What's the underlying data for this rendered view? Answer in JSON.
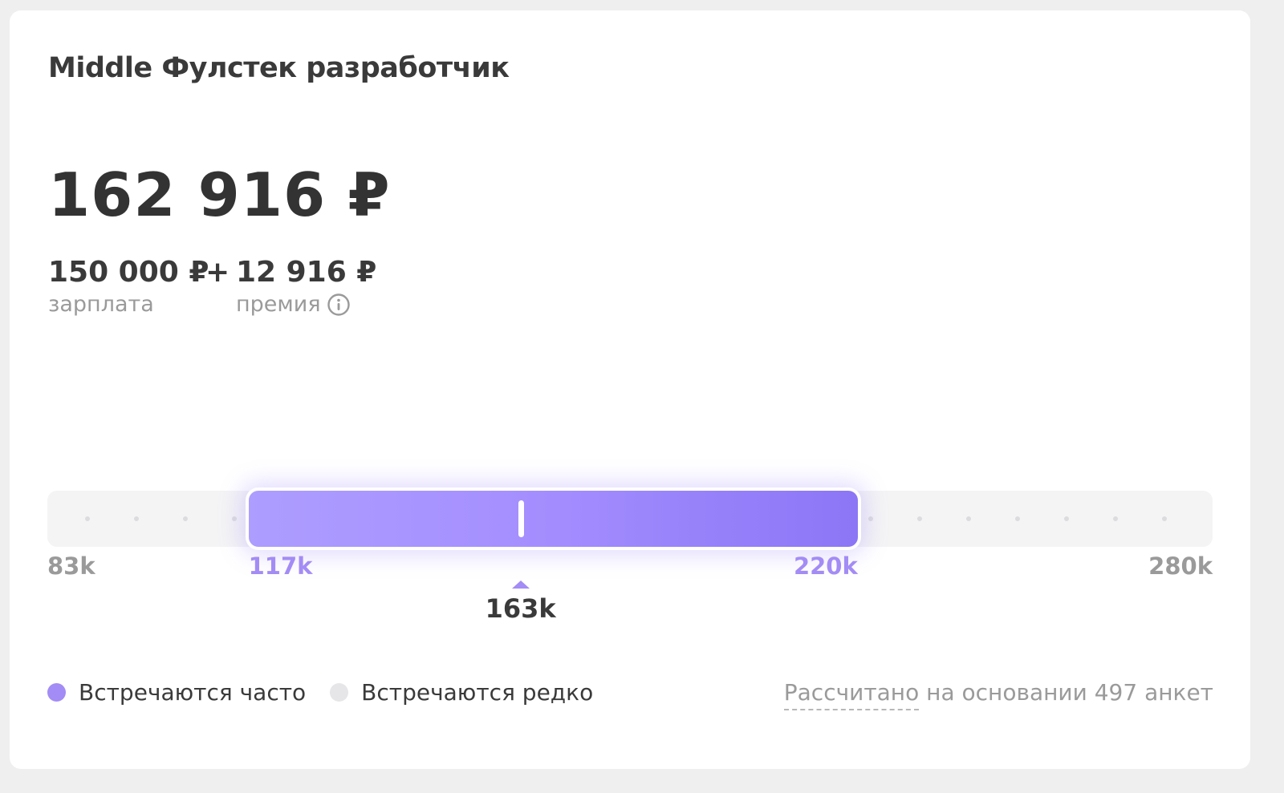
{
  "card": {
    "title": "Middle Фулстек разработчик",
    "total": "162 916 ₽",
    "salary": {
      "value": "150 000 ₽",
      "label": "зарплата"
    },
    "plus": "+",
    "bonus": {
      "value": "12 916 ₽",
      "label": "премия",
      "icon": "info-icon"
    }
  },
  "range": {
    "min": 83,
    "max": 280,
    "common_from": 117,
    "common_to": 220,
    "median": 163,
    "labels": {
      "min": "83k",
      "common_from": "117k",
      "common_to": "220k",
      "max": "280k",
      "median": "163k"
    },
    "colors": {
      "common": "#a38cf5",
      "rare": "#e6e6e8"
    }
  },
  "legend": {
    "often": "Встречаются часто",
    "rare": "Встречаются редко"
  },
  "footnote": {
    "link": "Рассчитано",
    "rest": "на основании 497 анкет"
  }
}
